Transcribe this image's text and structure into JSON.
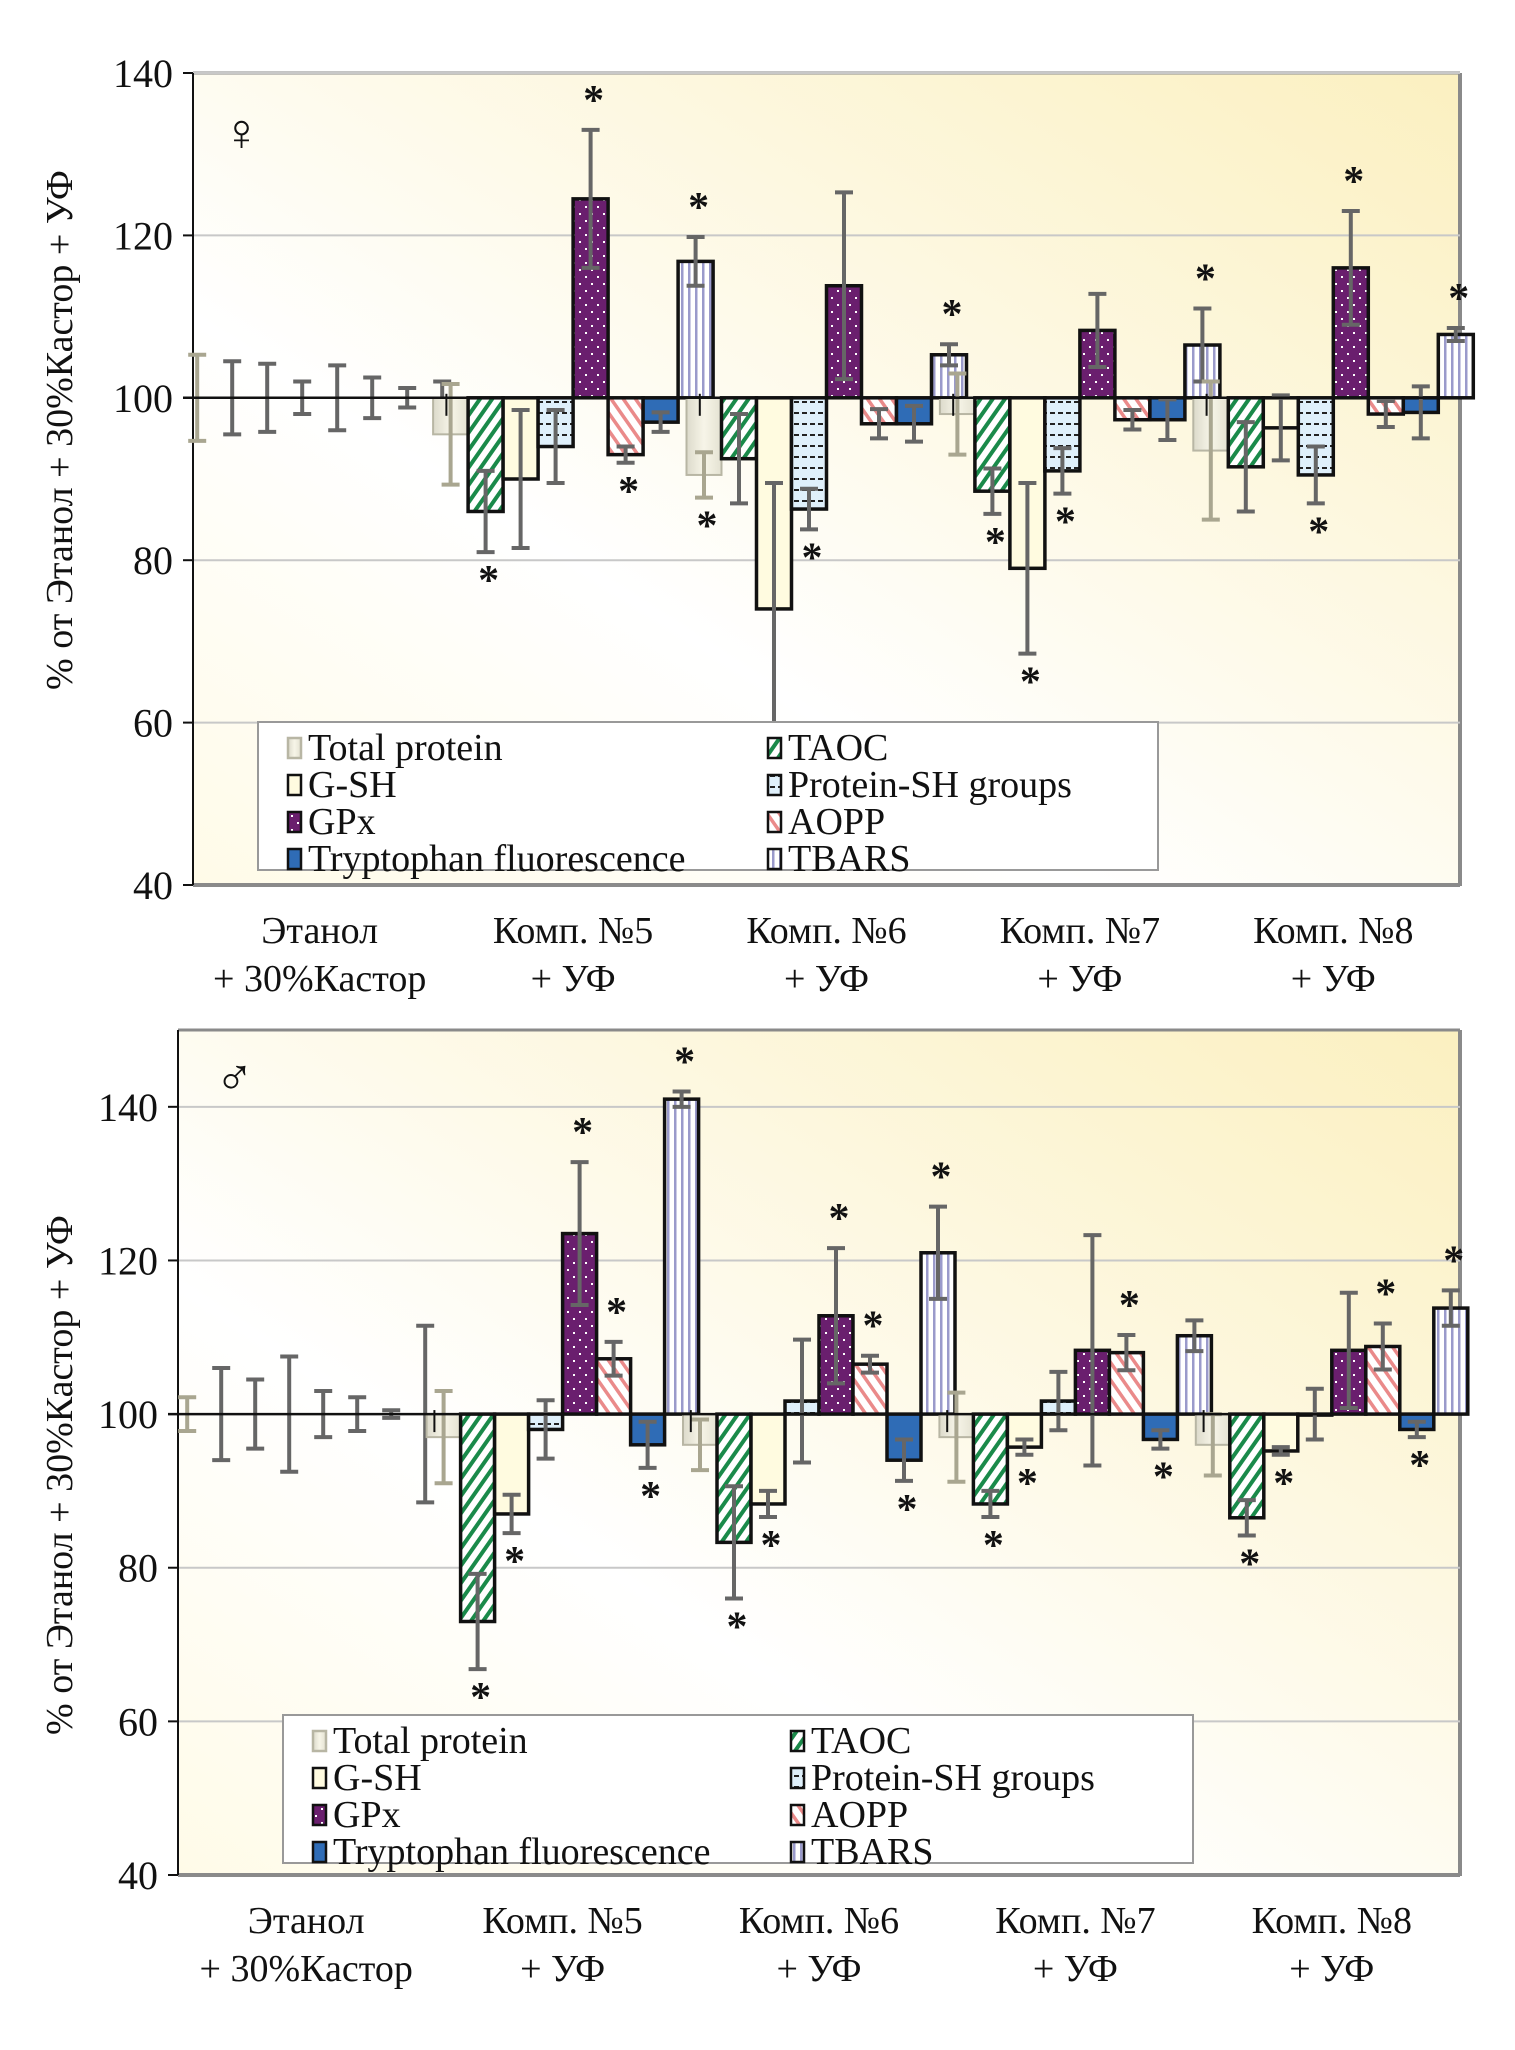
{
  "chart_data": [
    {
      "type": "bar",
      "panel": "female",
      "sex_symbol": "♀",
      "title": "",
      "xlabel": "",
      "ylabel": "% от Этанол + 30%Кастор + УФ",
      "ylim": [
        40,
        140
      ],
      "yticks": [
        40,
        60,
        80,
        100,
        120,
        140
      ],
      "baseline": 100,
      "grid": true,
      "legend_position": "bottom-center",
      "categories": [
        [
          "Этанол",
          "+ 30%Кастор"
        ],
        [
          "Комп. №5",
          "+ УФ"
        ],
        [
          "Комп. №6",
          "+ УФ"
        ],
        [
          "Комп. №7",
          "+ УФ"
        ],
        [
          "Комп. №8",
          "+ УФ"
        ]
      ],
      "series": [
        {
          "name": "Total protein",
          "values": [
            100,
            95.5,
            90.5,
            98,
            93.5
          ],
          "errors": [
            5.3,
            6.2,
            2.8,
            5,
            8.5
          ],
          "significant": [
            false,
            false,
            true,
            false,
            false
          ]
        },
        {
          "name": "TAOC",
          "values": [
            100,
            86,
            92.5,
            88.5,
            91.5
          ],
          "errors": [
            4.5,
            5,
            5.5,
            2.8,
            5.5
          ],
          "significant": [
            false,
            true,
            false,
            true,
            false
          ]
        },
        {
          "name": "G-SH",
          "values": [
            100,
            90,
            74,
            79,
            96.3
          ],
          "errors": [
            4.2,
            8.5,
            15.5,
            10.5,
            4
          ],
          "significant": [
            false,
            false,
            true,
            true,
            false
          ]
        },
        {
          "name": "Protein-SH groups",
          "values": [
            100,
            94,
            86.3,
            91,
            90.5
          ],
          "errors": [
            2,
            4.5,
            2.5,
            2.8,
            3.5
          ],
          "significant": [
            false,
            false,
            true,
            true,
            true
          ]
        },
        {
          "name": "GPx",
          "values": [
            100,
            124.5,
            113.8,
            108.3,
            116
          ],
          "errors": [
            4,
            8.5,
            11.5,
            4.5,
            7
          ],
          "significant": [
            false,
            true,
            false,
            false,
            true
          ]
        },
        {
          "name": "AOPP",
          "values": [
            100,
            93,
            96.8,
            97.3,
            98
          ],
          "errors": [
            2.5,
            1,
            1.8,
            1.2,
            1.6
          ],
          "significant": [
            false,
            true,
            false,
            false,
            false
          ]
        },
        {
          "name": "Tryptophan fluorescence",
          "values": [
            100,
            97,
            96.8,
            97.3,
            98.2
          ],
          "errors": [
            1.2,
            1.2,
            2.2,
            2.5,
            3.2
          ],
          "significant": [
            false,
            false,
            false,
            false,
            false
          ]
        },
        {
          "name": "TBARS",
          "values": [
            100,
            116.8,
            105.3,
            106.5,
            107.8
          ],
          "errors": [
            2,
            3,
            1.3,
            4.5,
            0.8
          ],
          "significant": [
            false,
            true,
            true,
            true,
            true
          ]
        }
      ]
    },
    {
      "type": "bar",
      "panel": "male",
      "sex_symbol": "♂",
      "title": "",
      "xlabel": "",
      "ylabel": "% от Этанол + 30%Кастор + УФ",
      "ylim": [
        40,
        150
      ],
      "yticks": [
        40,
        60,
        80,
        100,
        120,
        140
      ],
      "baseline": 100,
      "grid": true,
      "legend_position": "bottom-center",
      "categories": [
        [
          "Этанол",
          "+ 30%Кастор"
        ],
        [
          "Комп. №5",
          "+ УФ"
        ],
        [
          "Комп. №6",
          "+ УФ"
        ],
        [
          "Комп. №7",
          "+ УФ"
        ],
        [
          "Комп. №8",
          "+ УФ"
        ]
      ],
      "series": [
        {
          "name": "Total protein",
          "values": [
            100,
            97,
            96,
            97,
            96
          ],
          "errors": [
            2.2,
            6,
            3.3,
            5.8,
            4
          ],
          "significant": [
            false,
            false,
            false,
            false,
            false
          ]
        },
        {
          "name": "TAOC",
          "values": [
            100,
            73,
            83.3,
            88.3,
            86.5
          ],
          "errors": [
            6,
            6.2,
            7.3,
            1.7,
            2.3
          ],
          "significant": [
            false,
            true,
            true,
            true,
            true
          ]
        },
        {
          "name": "G-SH",
          "values": [
            100,
            87,
            88.3,
            95.7,
            95.2
          ],
          "errors": [
            4.5,
            2.5,
            1.7,
            1,
            0.5
          ],
          "significant": [
            false,
            true,
            true,
            true,
            true
          ]
        },
        {
          "name": "Protein-SH groups",
          "values": [
            100,
            98,
            101.7,
            101.7,
            100
          ],
          "errors": [
            7.5,
            3.8,
            8,
            3.8,
            3.3
          ],
          "significant": [
            false,
            false,
            false,
            false,
            false
          ]
        },
        {
          "name": "GPx",
          "values": [
            100,
            123.5,
            112.8,
            108.3,
            108.3
          ],
          "errors": [
            3,
            9.3,
            8.8,
            15,
            7.5
          ],
          "significant": [
            false,
            true,
            true,
            false,
            false
          ]
        },
        {
          "name": "AOPP",
          "values": [
            100,
            107.2,
            106.5,
            108,
            108.8
          ],
          "errors": [
            2.2,
            2.2,
            1.1,
            2.3,
            3
          ],
          "significant": [
            false,
            true,
            true,
            true,
            true
          ]
        },
        {
          "name": "Tryptophan fluorescence",
          "values": [
            100,
            96,
            94,
            96.7,
            98
          ],
          "errors": [
            0.5,
            3,
            2.7,
            1.2,
            1
          ],
          "significant": [
            false,
            true,
            true,
            true,
            true
          ]
        },
        {
          "name": "TBARS",
          "values": [
            100,
            141,
            121,
            110.2,
            113.8
          ],
          "errors": [
            11.5,
            1,
            6,
            2,
            2.3
          ],
          "significant": [
            false,
            true,
            true,
            false,
            true
          ]
        }
      ]
    }
  ],
  "legend_style": {
    "Total protein": {
      "fill": "#eceadb",
      "pattern": "gradient"
    },
    "TAOC": {
      "fill": "#ffffff",
      "pattern": "diag-green",
      "color": "#1a8a4a"
    },
    "G-SH": {
      "fill": "#fffbe0",
      "pattern": "none"
    },
    "Protein-SH groups": {
      "fill": "#dff0fb",
      "pattern": "dashes",
      "color": "#222222"
    },
    "GPx": {
      "fill": "#6a1f6e",
      "pattern": "dots",
      "color": "#ffffff"
    },
    "AOPP": {
      "fill": "#ffffff",
      "pattern": "diag-red",
      "color": "#ea8a8a"
    },
    "Tryptophan fluorescence": {
      "fill": "#2f6cb6",
      "pattern": "none"
    },
    "TBARS": {
      "fill": "#ffffff",
      "pattern": "vlines",
      "color": "#9a9acb"
    }
  },
  "colors": {
    "background_top": "#fff9dc",
    "background_light": "#ffffff",
    "error_bar": "#666666",
    "grid": "#c8c8c8",
    "axis": "#111111"
  },
  "significance_marker": "*"
}
